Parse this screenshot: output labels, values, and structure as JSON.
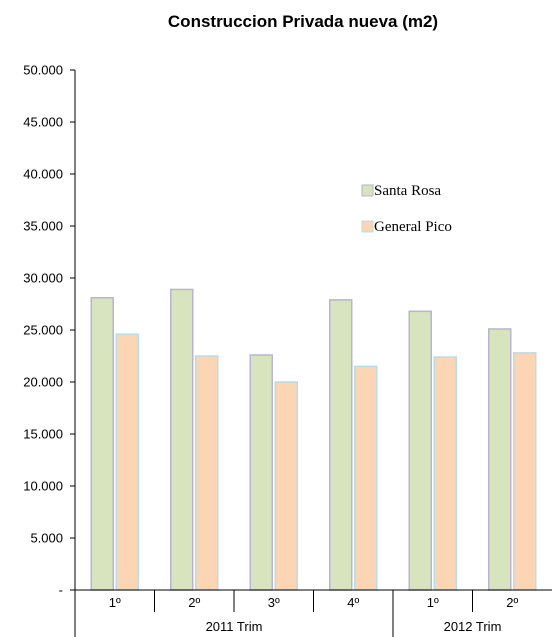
{
  "chart_data": {
    "type": "bar",
    "title": "Construccion Privada nueva (m2)",
    "xlabel": "",
    "ylabel": "",
    "ylim": [
      0,
      50000
    ],
    "ytick_step": 5000,
    "ytick_labels": [
      "-",
      "5.000",
      "10.000",
      "15.000",
      "20.000",
      "25.000",
      "30.000",
      "35.000",
      "40.000",
      "45.000",
      "50.000"
    ],
    "categories": [
      "1º",
      "2º",
      "3º",
      "4º",
      "1º",
      "2º"
    ],
    "groups": [
      {
        "label": "2011 Trim",
        "count": 4
      },
      {
        "label": "2012 Trim",
        "count": 2
      }
    ],
    "series": [
      {
        "name": "Santa Rosa",
        "color": "#d7e4bd",
        "border": "#b9b4d3",
        "values": [
          28100,
          28900,
          22600,
          27900,
          26800,
          25100
        ]
      },
      {
        "name": "General  Pico",
        "color": "#fcd5b5",
        "border": "#b7dde8",
        "values": [
          24600,
          22500,
          20000,
          21500,
          22400,
          22800
        ]
      }
    ],
    "legend_position": "right",
    "grid": false
  }
}
